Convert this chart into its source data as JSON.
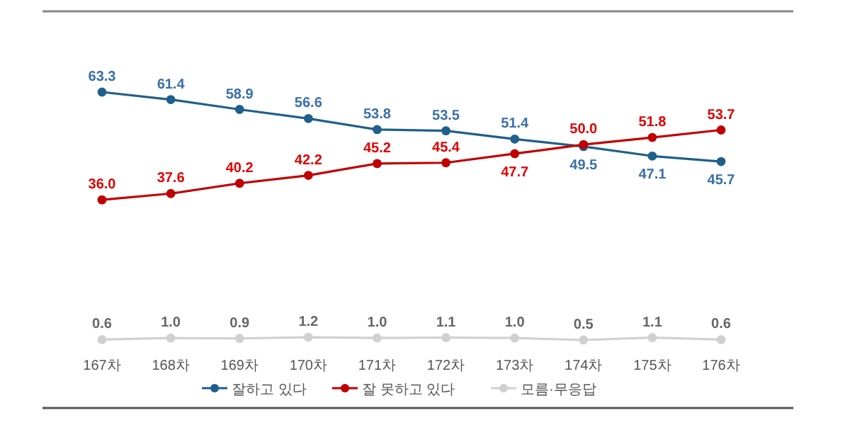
{
  "chart_data": {
    "type": "line",
    "categories": [
      "167차",
      "168차",
      "169차",
      "170차",
      "171차",
      "172차",
      "173차",
      "174차",
      "175차",
      "176차"
    ],
    "series": [
      {
        "name": "잘하고 있다",
        "color": "#1f5f8b",
        "values": [
          63.3,
          61.4,
          58.9,
          56.6,
          53.8,
          53.5,
          51.4,
          49.5,
          47.1,
          45.7
        ],
        "value_labels": [
          "63.3",
          "61.4",
          "58.9",
          "56.6",
          "53.8",
          "53.5",
          "51.4",
          "49.5",
          "47.1",
          "45.7"
        ]
      },
      {
        "name": "잘 못하고 있다",
        "color": "#c00000",
        "values": [
          36.0,
          37.6,
          40.2,
          42.2,
          45.2,
          45.4,
          47.7,
          50.0,
          51.8,
          53.7
        ],
        "value_labels": [
          "36.0",
          "37.6",
          "40.2",
          "42.2",
          "45.2",
          "45.4",
          "47.7",
          "50.0",
          "51.8",
          "53.7"
        ]
      },
      {
        "name": "모름·무응답",
        "color": "#d0d0d0",
        "values": [
          0.6,
          1.0,
          0.9,
          1.2,
          1.0,
          1.1,
          1.0,
          0.5,
          1.1,
          0.6
        ],
        "value_labels": [
          "0.6",
          "1.0",
          "0.9",
          "1.2",
          "1.0",
          "1.1",
          "1.0",
          "0.5",
          "1.1",
          "0.6"
        ]
      }
    ],
    "marker": "circle",
    "legend": "bottom"
  }
}
